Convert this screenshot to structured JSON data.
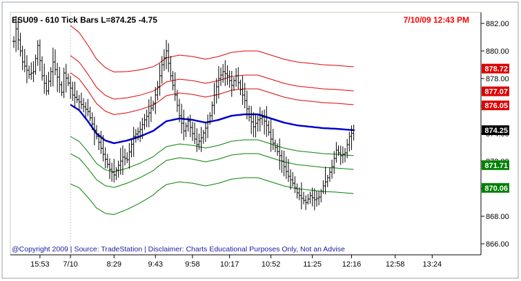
{
  "header": {
    "title": "ESU09 - 610 Tick Bars  L=874.25  -4.75",
    "timestamp": "7/10/09 12:43 PM"
  },
  "footer": {
    "copyright": "@Copyright 2009 | Source: TradeStation | Disclaimer: Charts Educational Purposes Only, Not an Advise"
  },
  "colors": {
    "price_bars": "#000000",
    "center_band": "#0000cc",
    "upper_bands": "#dd0000",
    "lower_bands": "#008000",
    "last_price_badge": "#000000",
    "copyright_text": "#1a1aa6"
  },
  "chart_data": {
    "type": "ohlc-bars-with-bands",
    "title": "ESU09 - 610 Tick Bars  L=874.25  -4.75",
    "timestamp": "7/10/09 12:43 PM",
    "ylim": [
      865.2,
      882.8
    ],
    "y_ticks": [
      "882.00",
      "880.00",
      "878.00",
      "876.00",
      "874.00",
      "872.00",
      "870.00",
      "868.00",
      "866.00"
    ],
    "y_tick_values": [
      882,
      880,
      878,
      876,
      874,
      872,
      870,
      868,
      866
    ],
    "x_tick_labels": [
      "15:53",
      "7/10",
      "8:29",
      "9:43",
      "9:58",
      "10:17",
      "10:52",
      "11:25",
      "12:16",
      "12:58",
      "13:24"
    ],
    "x_tick_index": [
      12,
      26,
      46,
      65,
      82,
      99,
      118,
      137,
      155,
      175,
      192
    ],
    "x_count": 210,
    "last_index": 156,
    "session_break_index": 26,
    "price_path": [
      [
        0,
        880.7
      ],
      [
        1,
        881.6
      ],
      [
        4,
        879.2
      ],
      [
        7,
        878.3
      ],
      [
        9,
        878.5
      ],
      [
        11,
        880.4
      ],
      [
        13,
        878.2
      ],
      [
        15,
        877.1
      ],
      [
        18,
        879.2
      ],
      [
        20,
        878.1
      ],
      [
        22,
        877.0
      ],
      [
        23,
        878.4
      ],
      [
        26,
        877.3
      ],
      [
        27,
        876.8
      ],
      [
        30,
        876.3
      ],
      [
        34,
        875.6
      ],
      [
        38,
        873.8
      ],
      [
        41,
        872.5
      ],
      [
        44,
        871.4
      ],
      [
        46,
        871.0
      ],
      [
        48,
        871.7
      ],
      [
        50,
        872.3
      ],
      [
        52,
        872.1
      ],
      [
        55,
        873.8
      ],
      [
        58,
        874.3
      ],
      [
        60,
        875.0
      ],
      [
        62,
        875.5
      ],
      [
        64,
        876.2
      ],
      [
        66,
        877.4
      ],
      [
        68,
        879.0
      ],
      [
        70,
        880.0
      ],
      [
        72,
        878.2
      ],
      [
        74,
        876.8
      ],
      [
        76,
        875.3
      ],
      [
        78,
        874.2
      ],
      [
        80,
        874.9
      ],
      [
        82,
        874.0
      ],
      [
        84,
        873.2
      ],
      [
        86,
        873.7
      ],
      [
        88,
        874.4
      ],
      [
        90,
        875.3
      ],
      [
        92,
        876.8
      ],
      [
        94,
        878.0
      ],
      [
        96,
        878.5
      ],
      [
        98,
        878.2
      ],
      [
        100,
        877.5
      ],
      [
        102,
        878.2
      ],
      [
        104,
        877.2
      ],
      [
        106,
        876.4
      ],
      [
        108,
        875.2
      ],
      [
        110,
        874.5
      ],
      [
        112,
        875.0
      ],
      [
        114,
        875.2
      ],
      [
        116,
        874.6
      ],
      [
        118,
        873.6
      ],
      [
        120,
        873.0
      ],
      [
        122,
        872.4
      ],
      [
        124,
        871.6
      ],
      [
        126,
        870.9
      ],
      [
        128,
        870.4
      ],
      [
        130,
        869.7
      ],
      [
        132,
        869.3
      ],
      [
        134,
        869.0
      ],
      [
        136,
        869.5
      ],
      [
        138,
        869.2
      ],
      [
        140,
        869.4
      ],
      [
        142,
        870.2
      ],
      [
        144,
        870.8
      ],
      [
        146,
        871.6
      ],
      [
        148,
        872.8
      ],
      [
        150,
        872.4
      ],
      [
        152,
        872.6
      ],
      [
        154,
        873.8
      ],
      [
        156,
        874.25
      ]
    ],
    "bands": {
      "start_index": 26,
      "end_index": 156,
      "center": {
        "color": "#0000cc",
        "points": [
          [
            26,
            876.1
          ],
          [
            30,
            875.7
          ],
          [
            34,
            874.9
          ],
          [
            38,
            874.0
          ],
          [
            42,
            873.5
          ],
          [
            46,
            873.3
          ],
          [
            52,
            873.5
          ],
          [
            58,
            873.8
          ],
          [
            64,
            874.2
          ],
          [
            70,
            874.9
          ],
          [
            76,
            875.1
          ],
          [
            82,
            875.0
          ],
          [
            88,
            874.8
          ],
          [
            94,
            875.0
          ],
          [
            100,
            875.3
          ],
          [
            106,
            875.4
          ],
          [
            112,
            875.4
          ],
          [
            118,
            875.1
          ],
          [
            124,
            874.8
          ],
          [
            130,
            874.6
          ],
          [
            136,
            874.5
          ],
          [
            142,
            874.4
          ],
          [
            148,
            874.35
          ],
          [
            156,
            874.25
          ]
        ]
      },
      "offsets": [
        4.6,
        2.85,
        1.85,
        -1.85,
        -2.85,
        -4.6
      ],
      "right_values": [
        878.72,
        877.07,
        876.05,
        871.71,
        870.06
      ],
      "upper_color": "#dd0000",
      "lower_color": "#008000"
    },
    "price_labels": [
      {
        "value": "878.72",
        "y": 878.72,
        "color": "#dd0000"
      },
      {
        "value": "877.07",
        "y": 877.07,
        "color": "#dd0000"
      },
      {
        "value": "876.05",
        "y": 876.05,
        "color": "#dd0000"
      },
      {
        "value": "874.25",
        "y": 874.25,
        "color": "#000000"
      },
      {
        "value": "871.71",
        "y": 871.71,
        "color": "#008000"
      },
      {
        "value": "870.06",
        "y": 870.06,
        "color": "#008000"
      }
    ],
    "grid": false
  }
}
